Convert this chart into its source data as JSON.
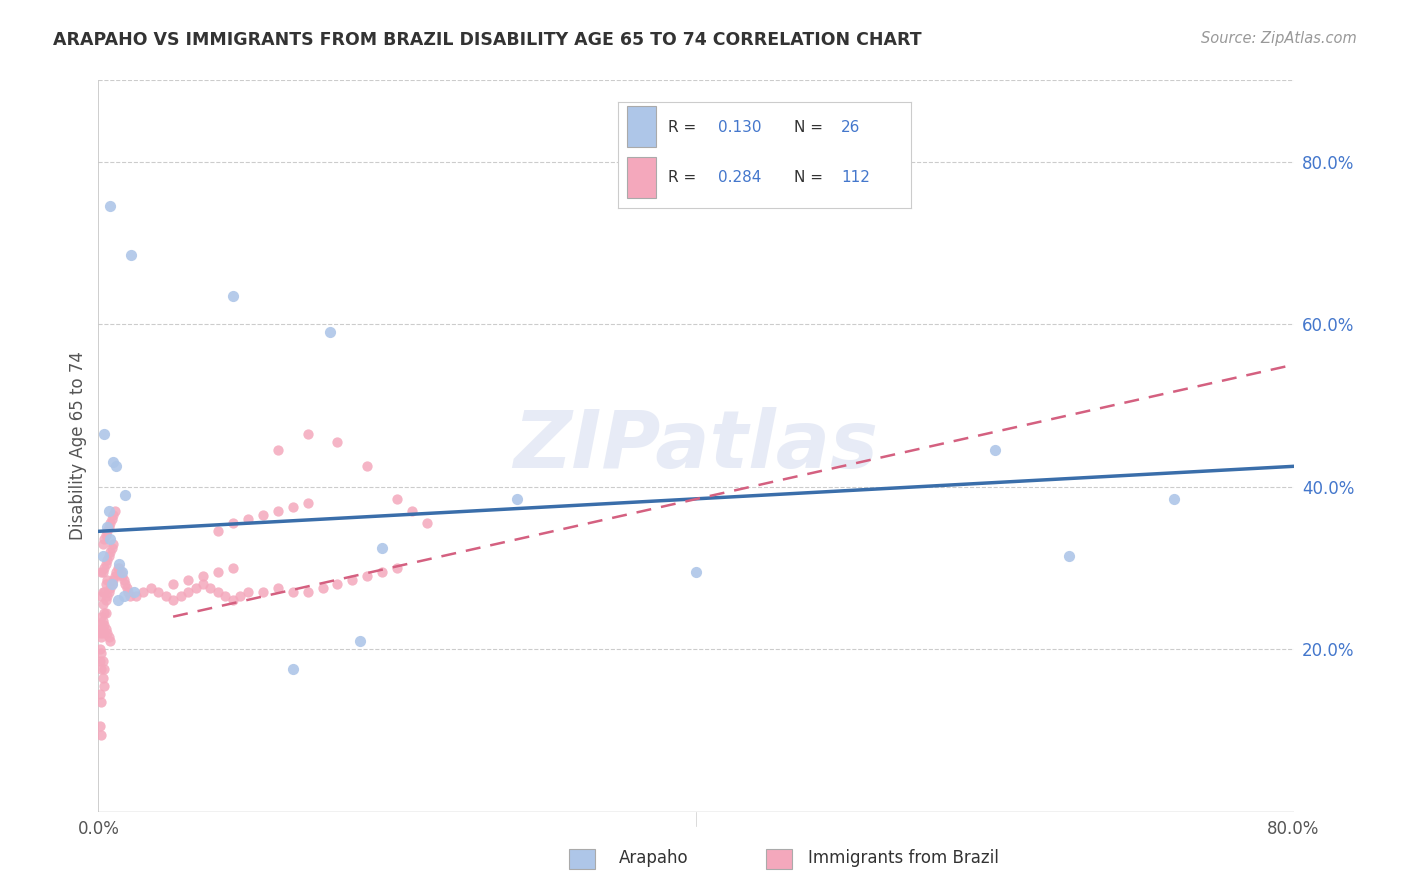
{
  "title": "ARAPAHO VS IMMIGRANTS FROM BRAZIL DISABILITY AGE 65 TO 74 CORRELATION CHART",
  "source": "Source: ZipAtlas.com",
  "ylabel": "Disability Age 65 to 74",
  "xlim": [
    0.0,
    0.8
  ],
  "ylim": [
    0.0,
    0.9
  ],
  "xtick_pos": [
    0.0,
    0.1,
    0.2,
    0.3,
    0.4,
    0.5,
    0.6,
    0.7,
    0.8
  ],
  "xtick_labels": [
    "0.0%",
    "",
    "",
    "",
    "",
    "",
    "",
    "",
    "80.0%"
  ],
  "ytick_pos": [
    0.2,
    0.4,
    0.6,
    0.8
  ],
  "ytick_labels": [
    "20.0%",
    "40.0%",
    "60.0%",
    "80.0%"
  ],
  "background_color": "#ffffff",
  "watermark": "ZIPatlas",
  "arapaho_color": "#aec6e8",
  "brazil_color": "#f4a8bc",
  "arapaho_line_color": "#3a6eaa",
  "brazil_line_color": "#d46080",
  "grid_color": "#cccccc",
  "arapaho_line_x0": 0.0,
  "arapaho_line_y0": 0.345,
  "arapaho_line_x1": 0.8,
  "arapaho_line_y1": 0.425,
  "brazil_line_x0": 0.05,
  "brazil_line_y0": 0.24,
  "brazil_line_x1": 0.8,
  "brazil_line_y1": 0.55,
  "arapaho_points_x": [
    0.008,
    0.022,
    0.09,
    0.155,
    0.004,
    0.01,
    0.012,
    0.018,
    0.007,
    0.006,
    0.008,
    0.19,
    0.003,
    0.014,
    0.016,
    0.009,
    0.024,
    0.017,
    0.013,
    0.6,
    0.72,
    0.65,
    0.4,
    0.28,
    0.175,
    0.13
  ],
  "arapaho_points_y": [
    0.745,
    0.685,
    0.635,
    0.59,
    0.465,
    0.43,
    0.425,
    0.39,
    0.37,
    0.35,
    0.335,
    0.325,
    0.315,
    0.305,
    0.295,
    0.28,
    0.27,
    0.265,
    0.26,
    0.445,
    0.385,
    0.315,
    0.295,
    0.385,
    0.21,
    0.175
  ],
  "brazil_points_x": [
    0.002,
    0.003,
    0.004,
    0.005,
    0.003,
    0.004,
    0.005,
    0.006,
    0.002,
    0.003,
    0.004,
    0.005,
    0.006,
    0.007,
    0.008,
    0.009,
    0.01,
    0.005,
    0.006,
    0.007,
    0.008,
    0.009,
    0.01,
    0.011,
    0.012,
    0.013,
    0.014,
    0.015,
    0.016,
    0.017,
    0.018,
    0.019,
    0.02,
    0.021,
    0.002,
    0.003,
    0.004,
    0.005,
    0.006,
    0.007,
    0.008,
    0.003,
    0.004,
    0.005,
    0.006,
    0.007,
    0.008,
    0.009,
    0.01,
    0.011,
    0.025,
    0.03,
    0.035,
    0.04,
    0.045,
    0.05,
    0.055,
    0.06,
    0.065,
    0.07,
    0.075,
    0.08,
    0.085,
    0.09,
    0.095,
    0.1,
    0.11,
    0.12,
    0.13,
    0.14,
    0.15,
    0.16,
    0.17,
    0.18,
    0.19,
    0.2,
    0.001,
    0.002,
    0.003,
    0.004,
    0.001,
    0.002,
    0.003,
    0.004,
    0.001,
    0.002,
    0.001,
    0.002,
    0.003,
    0.12,
    0.14,
    0.16,
    0.18,
    0.2,
    0.21,
    0.22,
    0.001,
    0.002,
    0.001,
    0.002,
    0.08,
    0.09,
    0.1,
    0.11,
    0.12,
    0.13,
    0.14,
    0.05,
    0.06,
    0.07,
    0.08,
    0.09
  ],
  "brazil_points_y": [
    0.265,
    0.255,
    0.245,
    0.245,
    0.27,
    0.27,
    0.28,
    0.285,
    0.295,
    0.295,
    0.3,
    0.305,
    0.31,
    0.315,
    0.32,
    0.325,
    0.33,
    0.26,
    0.265,
    0.27,
    0.275,
    0.28,
    0.285,
    0.29,
    0.295,
    0.3,
    0.3,
    0.295,
    0.29,
    0.285,
    0.28,
    0.275,
    0.27,
    0.265,
    0.24,
    0.235,
    0.23,
    0.225,
    0.22,
    0.215,
    0.21,
    0.33,
    0.335,
    0.34,
    0.345,
    0.35,
    0.355,
    0.36,
    0.365,
    0.37,
    0.265,
    0.27,
    0.275,
    0.27,
    0.265,
    0.26,
    0.265,
    0.27,
    0.275,
    0.28,
    0.275,
    0.27,
    0.265,
    0.26,
    0.265,
    0.27,
    0.27,
    0.275,
    0.27,
    0.27,
    0.275,
    0.28,
    0.285,
    0.29,
    0.295,
    0.3,
    0.185,
    0.175,
    0.165,
    0.155,
    0.2,
    0.195,
    0.185,
    0.175,
    0.22,
    0.215,
    0.23,
    0.225,
    0.22,
    0.445,
    0.465,
    0.455,
    0.425,
    0.385,
    0.37,
    0.355,
    0.145,
    0.135,
    0.105,
    0.095,
    0.345,
    0.355,
    0.36,
    0.365,
    0.37,
    0.375,
    0.38,
    0.28,
    0.285,
    0.29,
    0.295,
    0.3
  ]
}
